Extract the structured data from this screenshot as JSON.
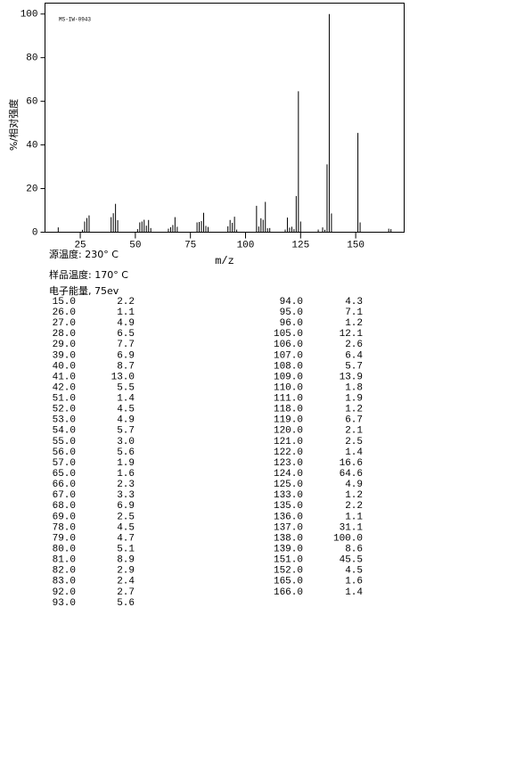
{
  "chart_data": {
    "type": "bar",
    "title": "MS-IW-0943",
    "xlabel": "m/z",
    "ylabel": "%/相对强度",
    "x": [
      15,
      26,
      27,
      28,
      29,
      39,
      40,
      41,
      42,
      51,
      52,
      53,
      54,
      55,
      56,
      57,
      65,
      66,
      67,
      68,
      69,
      78,
      79,
      80,
      81,
      82,
      83,
      92,
      93,
      94,
      95,
      96,
      105,
      106,
      107,
      108,
      109,
      110,
      111,
      118,
      119,
      120,
      121,
      122,
      123,
      124,
      125,
      133,
      135,
      136,
      137,
      138,
      139,
      151,
      152,
      165,
      166
    ],
    "values": [
      2.2,
      1.1,
      4.9,
      6.5,
      7.7,
      6.9,
      8.7,
      13.0,
      5.5,
      1.4,
      4.5,
      4.9,
      5.7,
      3.0,
      5.6,
      1.9,
      1.6,
      2.3,
      3.3,
      6.9,
      2.5,
      4.5,
      4.7,
      5.1,
      8.9,
      2.9,
      2.4,
      2.7,
      5.6,
      4.3,
      7.1,
      1.2,
      12.1,
      2.6,
      6.4,
      5.7,
      13.9,
      1.8,
      1.9,
      1.2,
      6.7,
      2.1,
      2.5,
      1.4,
      16.6,
      64.6,
      4.9,
      1.2,
      2.2,
      1.1,
      31.1,
      100.0,
      8.6,
      45.5,
      4.5,
      1.6,
      1.4
    ],
    "color": "#000000",
    "xlim": [
      9,
      172
    ],
    "xticks": [
      25,
      50,
      75,
      100,
      125,
      150
    ],
    "ylim": [
      0,
      105
    ],
    "yticks": [
      0,
      20,
      40,
      60,
      80,
      100
    ]
  },
  "conditions": [
    "源温度: 230° C",
    "样品温度: 170° C",
    "电子能量, 75ev"
  ],
  "table": {
    "rows": [
      [
        "15.0",
        "2.2"
      ],
      [
        "26.0",
        "1.1"
      ],
      [
        "27.0",
        "4.9"
      ],
      [
        "28.0",
        "6.5"
      ],
      [
        "29.0",
        "7.7"
      ],
      [
        "39.0",
        "6.9"
      ],
      [
        "40.0",
        "8.7"
      ],
      [
        "41.0",
        "13.0"
      ],
      [
        "42.0",
        "5.5"
      ],
      [
        "51.0",
        "1.4"
      ],
      [
        "52.0",
        "4.5"
      ],
      [
        "53.0",
        "4.9"
      ],
      [
        "54.0",
        "5.7"
      ],
      [
        "55.0",
        "3.0"
      ],
      [
        "56.0",
        "5.6"
      ],
      [
        "57.0",
        "1.9"
      ],
      [
        "65.0",
        "1.6"
      ],
      [
        "66.0",
        "2.3"
      ],
      [
        "67.0",
        "3.3"
      ],
      [
        "68.0",
        "6.9"
      ],
      [
        "69.0",
        "2.5"
      ],
      [
        "78.0",
        "4.5"
      ],
      [
        "79.0",
        "4.7"
      ],
      [
        "80.0",
        "5.1"
      ],
      [
        "81.0",
        "8.9"
      ],
      [
        "82.0",
        "2.9"
      ],
      [
        "83.0",
        "2.4"
      ],
      [
        "92.0",
        "2.7"
      ],
      [
        "93.0",
        "5.6"
      ],
      [
        "94.0",
        "4.3"
      ],
      [
        "95.0",
        "7.1"
      ],
      [
        "96.0",
        "1.2"
      ],
      [
        "105.0",
        "12.1"
      ],
      [
        "106.0",
        "2.6"
      ],
      [
        "107.0",
        "6.4"
      ],
      [
        "108.0",
        "5.7"
      ],
      [
        "109.0",
        "13.9"
      ],
      [
        "110.0",
        "1.8"
      ],
      [
        "111.0",
        "1.9"
      ],
      [
        "118.0",
        "1.2"
      ],
      [
        "119.0",
        "6.7"
      ],
      [
        "120.0",
        "2.1"
      ],
      [
        "121.0",
        "2.5"
      ],
      [
        "122.0",
        "1.4"
      ],
      [
        "123.0",
        "16.6"
      ],
      [
        "124.0",
        "64.6"
      ],
      [
        "125.0",
        "4.9"
      ],
      [
        "133.0",
        "1.2"
      ],
      [
        "135.0",
        "2.2"
      ],
      [
        "136.0",
        "1.1"
      ],
      [
        "137.0",
        "31.1"
      ],
      [
        "138.0",
        "100.0"
      ],
      [
        "139.0",
        "8.6"
      ],
      [
        "151.0",
        "45.5"
      ],
      [
        "152.0",
        "4.5"
      ],
      [
        "165.0",
        "1.6"
      ],
      [
        "166.0",
        "1.4"
      ]
    ]
  }
}
